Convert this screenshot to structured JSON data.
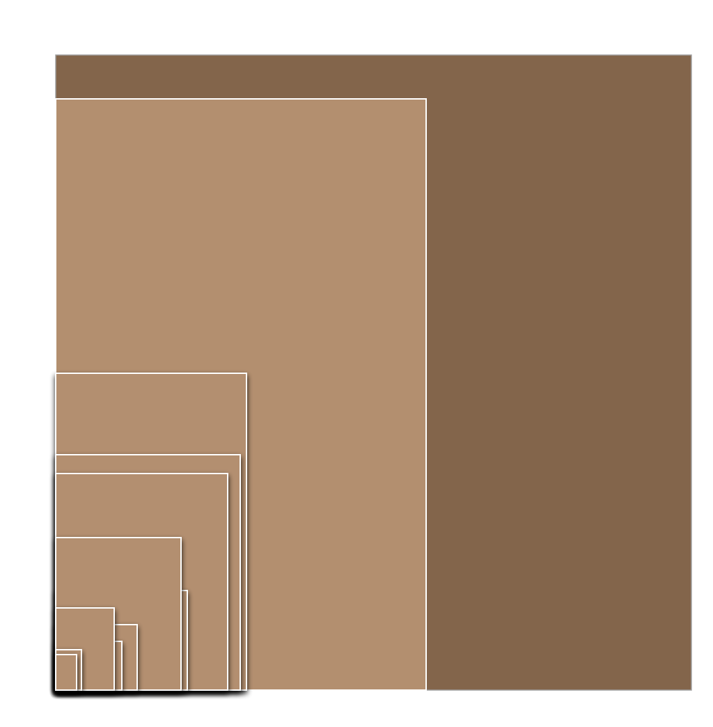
{
  "colors": {
    "background": "#ffffff",
    "outer_fill": "#83654b",
    "outer_stroke": "#a0a0a0",
    "inner_fill": "#b38f6f",
    "inner_stroke": "#ffffff",
    "shadow": "#000000"
  },
  "diagram": {
    "type": "nested-rectangles",
    "anchor": "bottom-left",
    "rectangle_count": 13
  }
}
